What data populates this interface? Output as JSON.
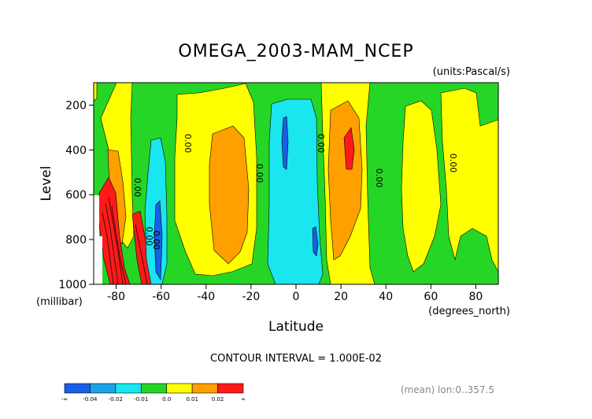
{
  "chart_data": {
    "type": "contour",
    "title": "OMEGA_2003-MAM_NCEP",
    "units_label": "(units:Pascal/s)",
    "xlabel": "Latitude",
    "xunit_label": "(degrees_north)",
    "ylabel": "Level",
    "yunit_label": "(millibar)",
    "x_range": [
      -90,
      90
    ],
    "y_range": [
      1000,
      100
    ],
    "x_ticks": [
      -80,
      -60,
      -40,
      -20,
      0,
      20,
      40,
      60,
      80
    ],
    "y_ticks": [
      200,
      400,
      600,
      800,
      1000
    ],
    "contour_interval_text": "CONTOUR INTERVAL = 1.000E-02",
    "mean_text": "(mean) lon:0..357.5",
    "contour_line_labels": [
      "0.00",
      "0.00",
      "0.00",
      "0.00",
      "0.00",
      "0.00",
      "0.00",
      "0.00"
    ],
    "colorbar": {
      "colors": [
        "#1a5fe8",
        "#1ba3e6",
        "#19e6ee",
        "#26d626",
        "#ffff00",
        "#ff9f00",
        "#ff1a1a"
      ],
      "labels": [
        "-∞",
        "-0.04",
        "-0.02",
        "-0.01",
        "0.0",
        "0.01",
        "0.02",
        "∞"
      ]
    },
    "regions": [
      {
        "name": "green-background",
        "level": "-0.01..0.0"
      },
      {
        "name": "yellow-band",
        "level": "0.0..0.01"
      },
      {
        "name": "orange-band",
        "level": "0.01..0.02"
      },
      {
        "name": "red-core",
        "level": ">0.02"
      },
      {
        "name": "cyan-band",
        "level": "-0.02..-0.01"
      },
      {
        "name": "blue-core",
        "level": "-0.04..-0.02"
      }
    ]
  }
}
